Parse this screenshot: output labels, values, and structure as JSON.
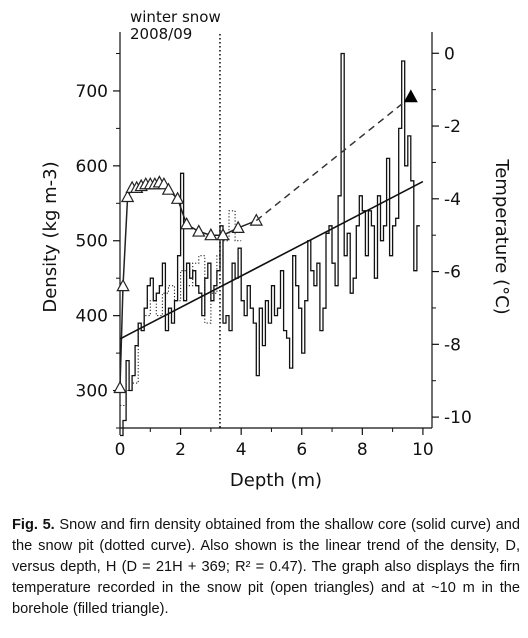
{
  "chart_data": {
    "type": "line",
    "title": "",
    "xlabel": "Depth (m)",
    "ylabel_left": "Density (kg m-3)",
    "ylabel_right": "Temperature (°C)",
    "xlim": [
      0,
      10.3
    ],
    "ylim_left": [
      250,
      760
    ],
    "ylim_right": [
      -10.3,
      0.2
    ],
    "x_ticks": [
      0,
      2,
      4,
      6,
      8,
      10
    ],
    "y_left_ticks": [
      300,
      400,
      500,
      600,
      700
    ],
    "y_right_ticks": [
      0,
      -2,
      -4,
      -6,
      -8,
      -10
    ],
    "annotation": {
      "line1": "winter snow",
      "line2": "2008/09",
      "depth": 3.3
    },
    "series": [
      {
        "label": "shallow core density",
        "style": "solid-step",
        "x": [
          0.0,
          0.1,
          0.2,
          0.3,
          0.4,
          0.5,
          0.6,
          0.7,
          0.8,
          0.9,
          1.0,
          1.1,
          1.2,
          1.3,
          1.4,
          1.5,
          1.6,
          1.7,
          1.8,
          1.9,
          2.0,
          2.1,
          2.2,
          2.3,
          2.4,
          2.5,
          2.6,
          2.7,
          2.8,
          2.9,
          3.0,
          3.1,
          3.2,
          3.3,
          3.4,
          3.5,
          3.6,
          3.7,
          3.8,
          3.9,
          4.0,
          4.1,
          4.2,
          4.3,
          4.4,
          4.5,
          4.6,
          4.7,
          4.8,
          4.9,
          5.0,
          5.1,
          5.2,
          5.3,
          5.4,
          5.5,
          5.6,
          5.7,
          5.8,
          5.9,
          6.0,
          6.1,
          6.2,
          6.3,
          6.4,
          6.5,
          6.6,
          6.7,
          6.8,
          6.9,
          7.0,
          7.1,
          7.2,
          7.3,
          7.4,
          7.5,
          7.6,
          7.7,
          7.8,
          7.9,
          8.0,
          8.1,
          8.2,
          8.3,
          8.4,
          8.5,
          8.6,
          8.7,
          8.8,
          8.9,
          9.0,
          9.1,
          9.2,
          9.3,
          9.4,
          9.5,
          9.6,
          9.7,
          9.8
        ],
        "values": [
          240,
          260,
          340,
          300,
          320,
          360,
          390,
          380,
          410,
          440,
          450,
          420,
          430,
          440,
          470,
          380,
          410,
          390,
          420,
          480,
          590,
          420,
          470,
          450,
          460,
          440,
          430,
          400,
          450,
          470,
          420,
          440,
          460,
          520,
          390,
          400,
          380,
          470,
          450,
          490,
          420,
          400,
          440,
          410,
          390,
          320,
          410,
          360,
          420,
          390,
          440,
          400,
          410,
          460,
          380,
          370,
          330,
          480,
          440,
          410,
          350,
          420,
          500,
          460,
          440,
          470,
          380,
          410,
          510,
          520,
          470,
          440,
          560,
          750,
          480,
          510,
          430,
          450,
          520,
          560,
          540,
          480,
          540,
          520,
          450,
          560,
          500,
          520,
          610,
          480,
          520,
          530,
          650,
          740,
          600,
          640,
          580,
          460,
          520
        ]
      },
      {
        "label": "snow pit density",
        "style": "dotted-step",
        "x": [
          0.0,
          0.2,
          0.4,
          0.6,
          0.8,
          1.0,
          1.2,
          1.4,
          1.6,
          1.8,
          2.0,
          2.2,
          2.4,
          2.6,
          2.8,
          3.0,
          3.2,
          3.4,
          3.6,
          3.8
        ],
        "values": [
          280,
          300,
          310,
          390,
          400,
          420,
          400,
          430,
          440,
          420,
          460,
          440,
          470,
          480,
          390,
          430,
          480,
          500,
          540,
          500
        ]
      },
      {
        "label": "snow pit temperature",
        "style": "open-triangles",
        "x": [
          0.0,
          0.1,
          0.25,
          0.4,
          0.55,
          0.7,
          0.85,
          1.0,
          1.15,
          1.3,
          1.45,
          1.6,
          1.9,
          2.2,
          2.6,
          3.0,
          3.4,
          3.9,
          4.5
        ],
        "values": [
          -9.2,
          -6.4,
          -3.95,
          -3.7,
          -3.7,
          -3.65,
          -3.6,
          -3.6,
          -3.6,
          -3.55,
          -3.6,
          -3.75,
          -4.0,
          -4.7,
          -4.9,
          -5.0,
          -5.0,
          -4.8,
          -4.6
        ]
      },
      {
        "label": "temperature trend to borehole",
        "style": "dashed",
        "x": [
          4.5,
          9.6
        ],
        "values": [
          -4.6,
          -1.2
        ]
      },
      {
        "label": "borehole temperature",
        "style": "filled-triangle",
        "x": [
          9.6
        ],
        "values": [
          -1.2
        ]
      },
      {
        "label": "linear density trend",
        "style": "solid-line",
        "x": [
          0,
          10
        ],
        "values": [
          369,
          579
        ]
      }
    ]
  },
  "caption": {
    "label": "Fig. 5.",
    "text": " Snow and firn density obtained from the shallow core (solid curve) and the snow pit (dotted curve). Also shown is the linear trend of the density, D, versus depth, H (D = 21H + 369; R² = 0.47). The graph also displays the firn temperature recorded in the snow pit (open triangles) and at ~10 m in the borehole (filled triangle)."
  }
}
